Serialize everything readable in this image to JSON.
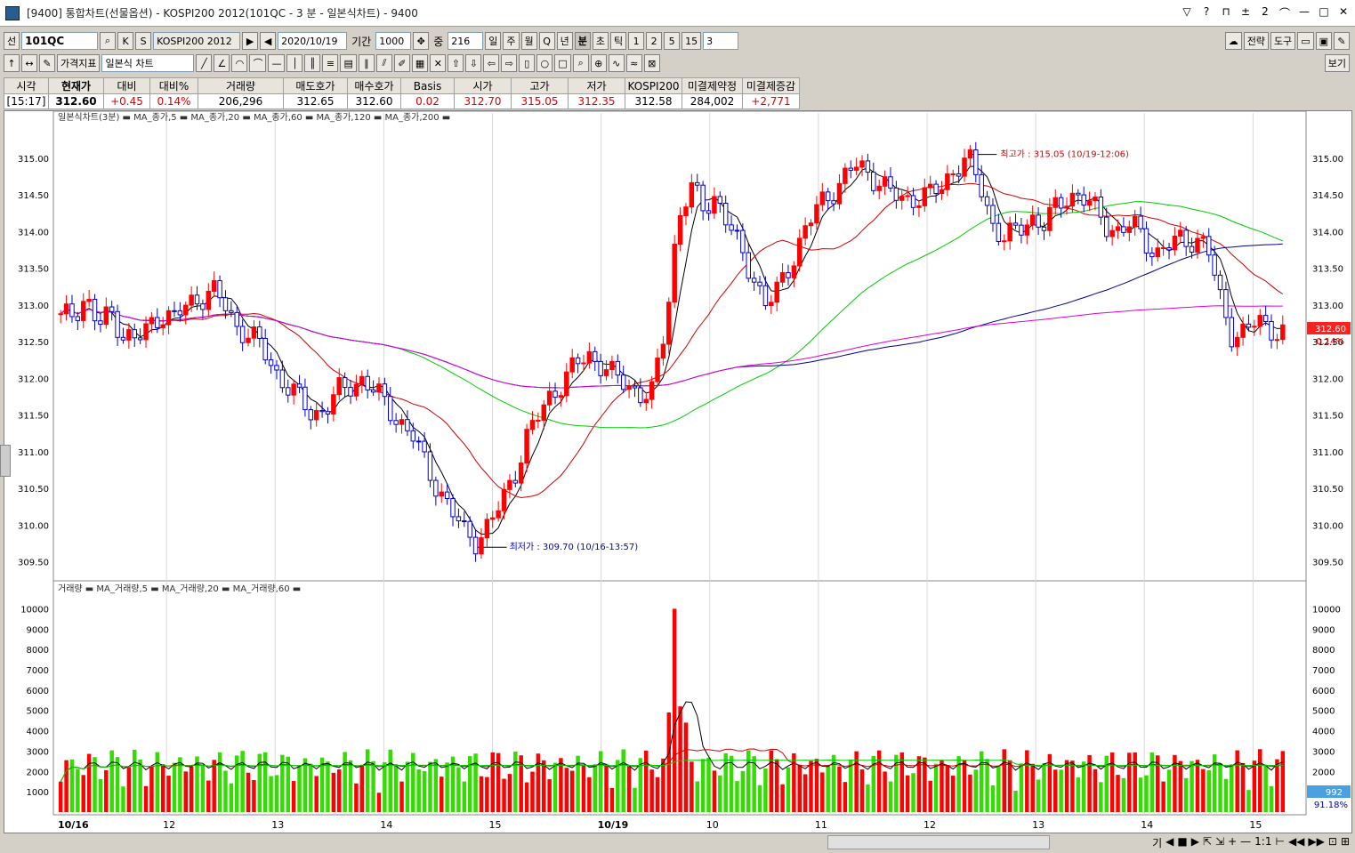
{
  "window": {
    "title": "[9400] 통합차트(선물옵션) - KOSPI200 2012(101QC - 3 분 - 일본식차트) - 9400",
    "controls": [
      "▽",
      "?",
      "⊓",
      "±",
      "2",
      "⌒",
      "—",
      "□",
      "✕"
    ]
  },
  "toolbar1": {
    "sun_btn": "선",
    "code": "101QC",
    "k_btn": "K",
    "s_btn": "S",
    "name": "KOSPI200 2012",
    "date": "2020/10/19",
    "period_label": "기간",
    "period_value": "1000",
    "count_label": "중",
    "count_value": "216",
    "interval_buttons": [
      "일",
      "주",
      "월",
      "Q",
      "년",
      "분",
      "초",
      "틱",
      "1",
      "2",
      "5",
      "15"
    ],
    "interval_value": "3",
    "strategy_btn": "전략",
    "tools_btn": "도구"
  },
  "toolbar2": {
    "indicator_btn": "가격지표",
    "chart_type": "일본식 차트",
    "view_btn": "보기"
  },
  "quote": {
    "headers": [
      "시각",
      "현재가",
      "대비",
      "대비%",
      "거래량",
      "매도호가",
      "매수호가",
      "Basis",
      "시가",
      "고가",
      "저가",
      "KOSPI200",
      "미결제약정",
      "미결제증감"
    ],
    "values": [
      "[15:17]",
      "312.60",
      "+0.45",
      "0.14%",
      "206,296",
      "312.65",
      "312.60",
      "0.02",
      "312.70",
      "315.05",
      "312.35",
      "312.58",
      "284,002",
      "+2,771"
    ]
  },
  "colors": {
    "up": "#ff0000",
    "down": "#0000cc",
    "ma5": "#000000",
    "ma20": "#d00000",
    "ma60": "#00cc00",
    "ma120": "#00008b",
    "ma200": "#dd00dd",
    "vol": "#33dd00"
  },
  "price_panel": {
    "legend": "일본식차트(3분) ▬ MA_종가,5 ▬ MA_종가,20 ▬ MA_종가,60 ▬ MA_종가,120 ▬ MA_종가,200 ▬",
    "y_ticks": [
      "315.00",
      "314.50",
      "314.00",
      "313.50",
      "313.00",
      "312.50",
      "312.00",
      "311.50",
      "311.00",
      "310.50",
      "310.00",
      "309.50"
    ],
    "high_label": "최고가 : 315.05 (10/19-12:06)",
    "low_label": "최저가 : 309.70 (10/16-13:57)",
    "current_price": "312.60",
    "current_pct": "0.14%"
  },
  "volume_panel": {
    "legend": "거래량 ▬ MA_거래량,5 ▬ MA_거래량,20 ▬ MA_거래량,60 ▬",
    "y_ticks": [
      "10000",
      "9000",
      "8000",
      "7000",
      "6000",
      "5000",
      "4000",
      "3000",
      "2000",
      "1000"
    ],
    "current_volume": "992",
    "current_pct": "91.18%"
  },
  "x_axis": {
    "labels": [
      "10/16",
      "12",
      "13",
      "14",
      "15",
      "10/19",
      "10",
      "11",
      "12",
      "13",
      "14",
      "15"
    ]
  },
  "status": {
    "buttons": [
      "기",
      "◀",
      "■",
      "▶",
      "⇱",
      "⇲",
      "+",
      "—",
      "1:1",
      "⊢",
      "◀◀",
      "▶▶",
      "⊡",
      "⊞"
    ]
  },
  "chart_data": {
    "type": "candlestick",
    "price_series": {
      "close_path": [
        312.8,
        312.9,
        313.1,
        312.7,
        312.9,
        312.6,
        312.5,
        312.7,
        312.9,
        312.8,
        313.0,
        313.1,
        313.2,
        313.0,
        312.7,
        312.6,
        312.4,
        312.1,
        311.9,
        311.7,
        311.5,
        311.6,
        311.8,
        311.9,
        312.0,
        311.8,
        311.6,
        311.4,
        311.2,
        310.8,
        310.5,
        310.2,
        309.9,
        309.8,
        310.0,
        310.3,
        310.7,
        311.2,
        311.5,
        311.8,
        312.0,
        312.2,
        312.3,
        312.2,
        312.0,
        311.9,
        311.8,
        311.8,
        312.7,
        314.2,
        314.6,
        314.3,
        314.5,
        314.1,
        313.7,
        313.4,
        313.0,
        313.2,
        313.6,
        314.0,
        314.3,
        314.5,
        314.7,
        314.9,
        314.8,
        314.7,
        314.5,
        314.4,
        314.5,
        314.5,
        314.6,
        314.9,
        315.0,
        314.6,
        314.1,
        313.9,
        314.0,
        314.2,
        314.1,
        314.3,
        314.5,
        314.5,
        314.3,
        314.1,
        314.0,
        314.1,
        313.9,
        313.7,
        313.8,
        313.9,
        313.9,
        313.8,
        313.1,
        312.6,
        312.6,
        312.8,
        312.7,
        312.6
      ],
      "labels": {
        "high": 315.05,
        "low": 309.7,
        "current": 312.6
      }
    },
    "y_range": [
      309.4,
      315.3
    ],
    "volume_range": [
      0,
      10500
    ]
  }
}
